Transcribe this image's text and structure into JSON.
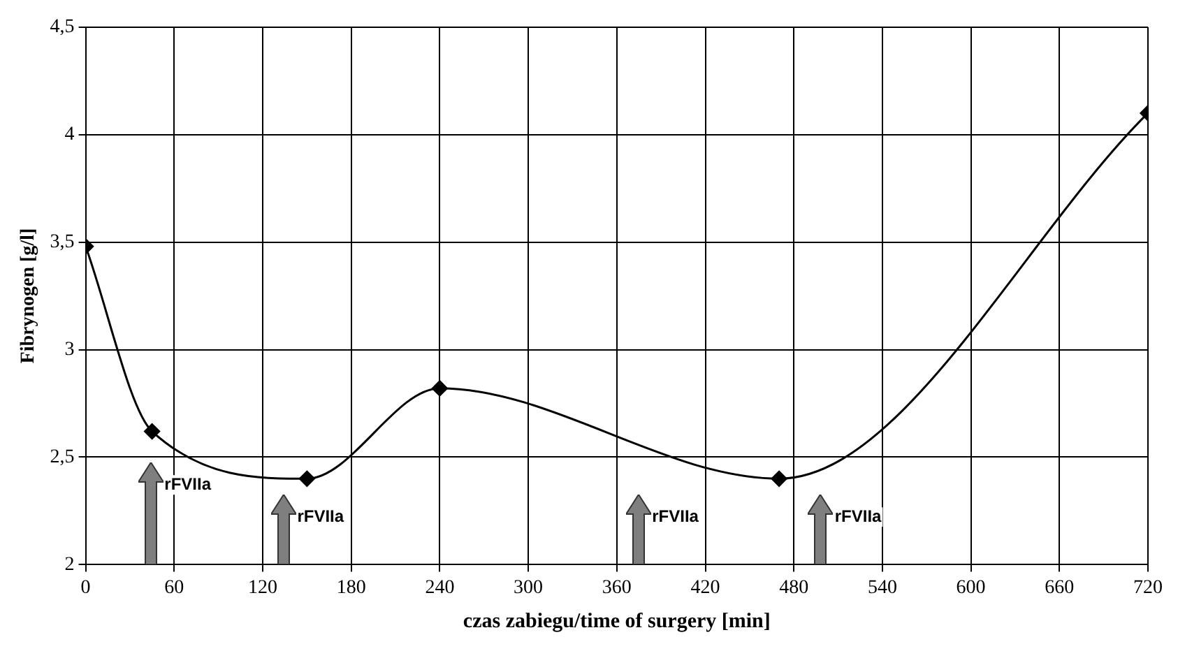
{
  "chart_data": {
    "type": "line",
    "xlabel": "czas zabiegu/time of surgery [min]",
    "ylabel": "Fibrynogen [g/l]",
    "x": [
      0,
      45,
      150,
      240,
      470,
      720
    ],
    "series": [
      {
        "color": "#000000",
        "values": [
          3.48,
          2.62,
          2.4,
          2.82,
          2.4,
          4.1
        ]
      }
    ],
    "xlim": [
      0,
      720
    ],
    "xticks": [
      0,
      60,
      120,
      180,
      240,
      300,
      360,
      420,
      480,
      540,
      600,
      660,
      720
    ],
    "ylim": [
      2,
      4.5
    ],
    "yticks": [
      {
        "value": 2,
        "label": "2"
      },
      {
        "value": 2.5,
        "label": "2,5"
      },
      {
        "value": 3,
        "label": "3"
      },
      {
        "value": 3.5,
        "label": "3,5"
      },
      {
        "value": 4,
        "label": "4"
      },
      {
        "value": 4.5,
        "label": "4,5"
      }
    ],
    "grid": true,
    "legend": false,
    "marker": "diamond",
    "line_style": "solid",
    "annotations": [
      "rFVIIa",
      "rFVIIa",
      "rFVIIa",
      "rFVIIa"
    ]
  }
}
